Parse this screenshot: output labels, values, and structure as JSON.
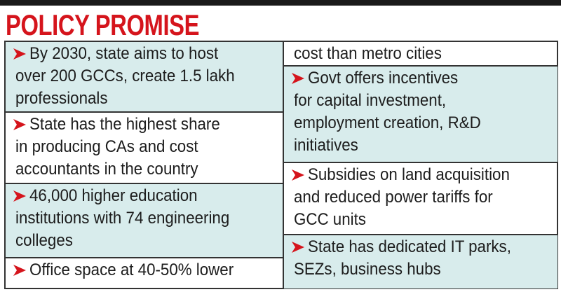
{
  "header": {
    "title": "POLICY PROMISE"
  },
  "columns": [
    {
      "items": [
        {
          "lines": [
            "By 2030, state aims to host",
            "over 200 GCCs, create 1.5 lakh",
            "professionals"
          ]
        },
        {
          "lines": [
            "State has the highest share",
            "in producing CAs and cost",
            "accountants in the country"
          ]
        },
        {
          "lines": [
            "46,000 higher education",
            "institutions with 74 engineering",
            "colleges"
          ]
        },
        {
          "lines": [
            "Office space at 40-50% lower"
          ]
        }
      ]
    },
    {
      "items": [
        {
          "lines": [
            "cost than metro cities"
          ]
        },
        {
          "lines": [
            "Govt offers incentives",
            "for capital investment,",
            "employment creation, R&D",
            "initiatives"
          ]
        },
        {
          "lines": [
            "Subsidies on land acquisition",
            "and reduced power tariffs for",
            "GCC units"
          ]
        },
        {
          "lines": [
            "State has dedicated IT parks,",
            "SEZs, business hubs"
          ]
        }
      ]
    }
  ]
}
